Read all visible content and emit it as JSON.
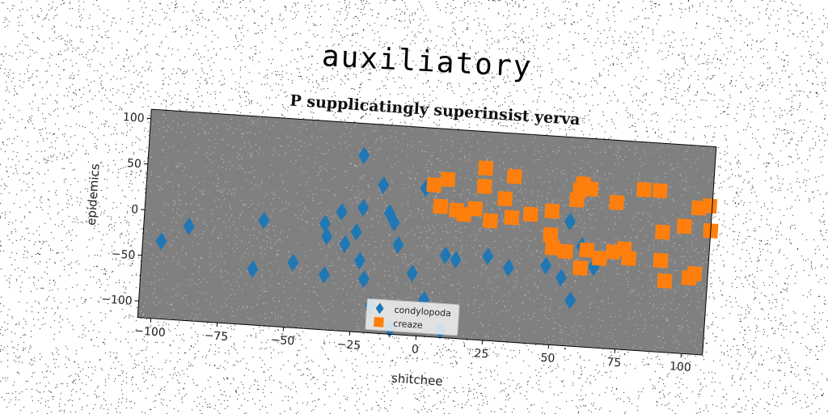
{
  "suptitle": "auxiliatory",
  "chart_data": {
    "type": "scatter",
    "title": "P supplicatingly superinsist yerva",
    "xlabel": "shitchee",
    "ylabel": "epidemics",
    "xlim": [
      -105,
      108
    ],
    "ylim": [
      -118,
      110
    ],
    "xticks": [
      -100,
      -75,
      -50,
      -25,
      0,
      25,
      50,
      75,
      100
    ],
    "yticks": [
      100,
      50,
      0,
      -50,
      -100
    ],
    "legend_position": "lower center",
    "background": "#808080",
    "series": [
      {
        "name": "condylopoda",
        "marker": "diamond",
        "color": "#1f77b4",
        "points": [
          [
            -98,
            -33
          ],
          [
            -88,
            -15
          ],
          [
            -60,
            -3
          ],
          [
            -63,
            -57
          ],
          [
            -48,
            -47
          ],
          [
            -37,
            -2
          ],
          [
            -36,
            -16
          ],
          [
            -36,
            -58
          ],
          [
            -31,
            12
          ],
          [
            -29,
            -23
          ],
          [
            -25,
            -9
          ],
          [
            -23,
            -40
          ],
          [
            -24,
            75
          ],
          [
            -23,
            18
          ],
          [
            -21,
            -60
          ],
          [
            -18,
            -88
          ],
          [
            -16,
            44
          ],
          [
            -13,
            14
          ],
          [
            -11,
            4
          ],
          [
            -9,
            -20
          ],
          [
            -3,
            -50
          ],
          [
            0,
            44
          ],
          [
            2,
            -78
          ],
          [
            9,
            -28
          ],
          [
            13,
            -32
          ],
          [
            25,
            -26
          ],
          [
            33,
            -37
          ],
          [
            47,
            -32
          ],
          [
            53,
            -44
          ],
          [
            55,
            18
          ],
          [
            57,
            -68
          ],
          [
            60,
            -8
          ],
          [
            65,
            -30
          ],
          [
            -10,
            -112
          ],
          [
            9,
            -110
          ]
        ]
      },
      {
        "name": "creaze",
        "marker": "square",
        "color": "#ff7f0e",
        "points": [
          [
            3,
            48
          ],
          [
            8,
            55
          ],
          [
            6,
            25
          ],
          [
            12,
            22
          ],
          [
            15,
            18
          ],
          [
            19,
            25
          ],
          [
            22,
            70
          ],
          [
            22,
            50
          ],
          [
            25,
            13
          ],
          [
            30,
            38
          ],
          [
            33,
            63
          ],
          [
            33,
            18
          ],
          [
            40,
            23
          ],
          [
            48,
            28
          ],
          [
            48,
            2
          ],
          [
            49,
            -12
          ],
          [
            54,
            -15
          ],
          [
            58,
            53
          ],
          [
            57,
            42
          ],
          [
            59,
            60
          ],
          [
            62,
            55
          ],
          [
            60,
            -32
          ],
          [
            62,
            -12
          ],
          [
            67,
            -20
          ],
          [
            72,
            -12
          ],
          [
            76,
            -8
          ],
          [
            78,
            -18
          ],
          [
            72,
            42
          ],
          [
            82,
            58
          ],
          [
            88,
            58
          ],
          [
            90,
            13
          ],
          [
            90,
            -18
          ],
          [
            92,
            -40
          ],
          [
            98,
            21
          ],
          [
            101,
            -35
          ],
          [
            103,
            42
          ],
          [
            103,
            -30
          ],
          [
            108,
            18
          ],
          [
            107,
            45
          ]
        ]
      }
    ]
  }
}
